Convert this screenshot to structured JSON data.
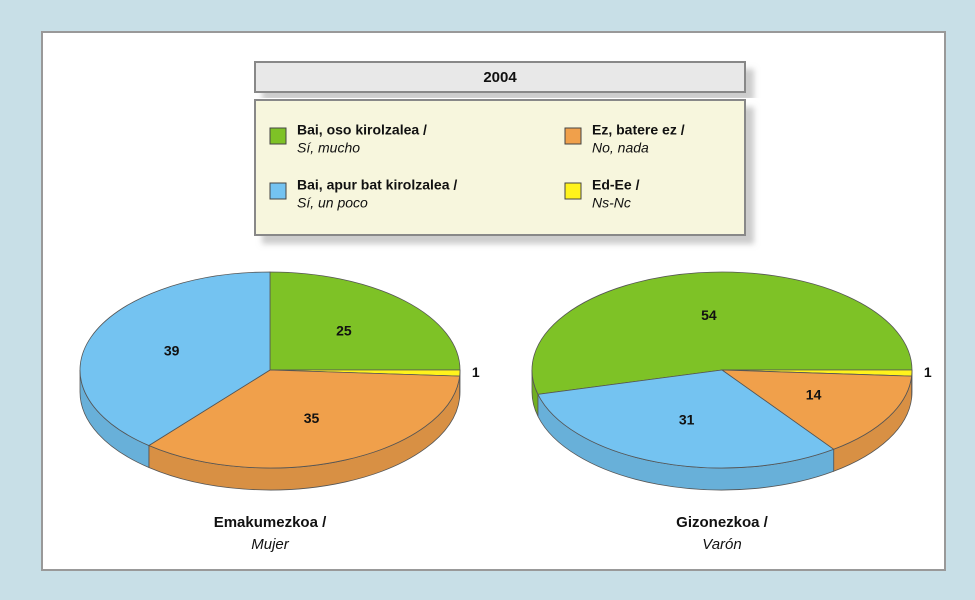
{
  "title": "2004",
  "legend": [
    {
      "label": "Bai, oso kirolzalea /",
      "label_es": "Sí, mucho",
      "color": "#7ec226"
    },
    {
      "label": "Bai, apur bat kirolzalea /",
      "label_es": "Sí, un poco",
      "color": "#74c3f1"
    },
    {
      "label": "Ez, batere ez /",
      "label_es": "No, nada",
      "color": "#f0a04b"
    },
    {
      "label": "Ed-Ee /",
      "label_es": "Ns-Nc",
      "color": "#fff31c"
    }
  ],
  "chart_data": [
    {
      "type": "pie",
      "name": "Emakumezkoa /",
      "name_es": "Mujer",
      "values": [
        25,
        39,
        35,
        1
      ]
    },
    {
      "type": "pie",
      "name": "Gizonezkoa /",
      "name_es": "Varón",
      "values": [
        54,
        31,
        14,
        1
      ]
    }
  ]
}
